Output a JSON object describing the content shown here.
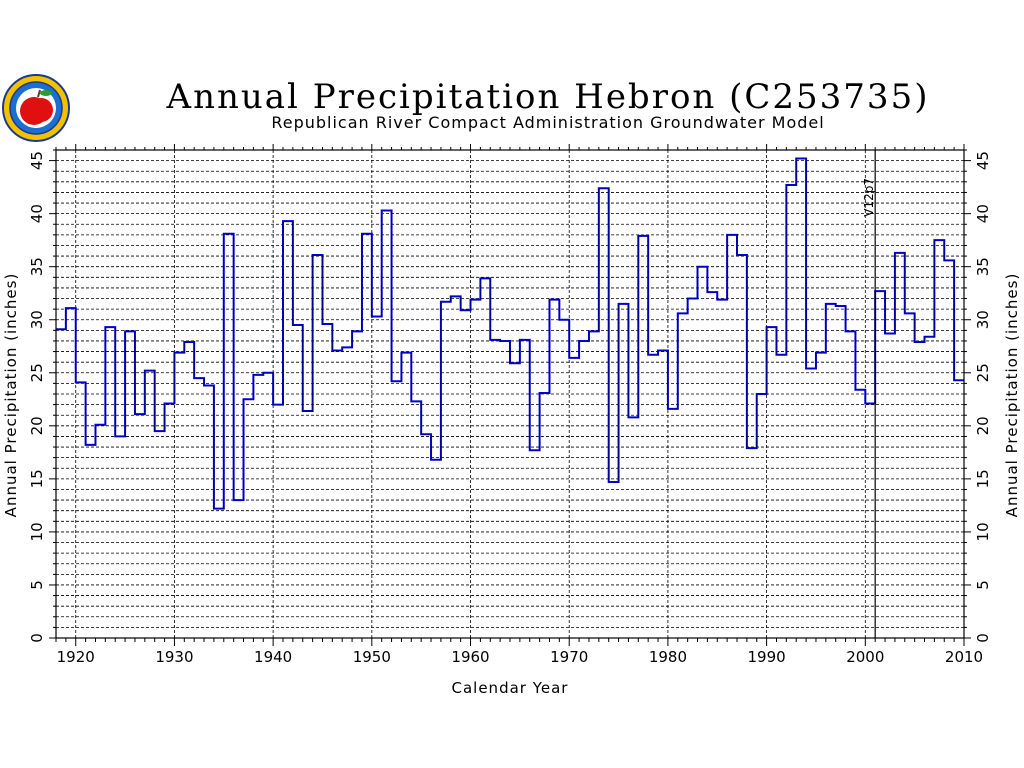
{
  "chart_data": {
    "type": "line",
    "step": true,
    "title": "Annual Precipitation Hebron (C253735)",
    "subtitle": "Republican River Compact Administration Groundwater Model",
    "xlabel": "Calendar Year",
    "ylabel": "Annual Precipitation (inches)",
    "ylabel_right": "Annual Precipitation (inches)",
    "xlim": [
      1918,
      2010
    ],
    "ylim": [
      0,
      46
    ],
    "x_ticks": [
      1920,
      1930,
      1940,
      1950,
      1960,
      1970,
      1980,
      1990,
      2000,
      2010
    ],
    "y_ticks": [
      0,
      5,
      10,
      15,
      20,
      25,
      30,
      35,
      40,
      45
    ],
    "grid": true,
    "series": [
      {
        "name": "Annual Precipitation",
        "color": "#0000cc",
        "x": [
          1918,
          1919,
          1920,
          1921,
          1922,
          1923,
          1924,
          1925,
          1926,
          1927,
          1928,
          1929,
          1930,
          1931,
          1932,
          1933,
          1934,
          1935,
          1936,
          1937,
          1938,
          1939,
          1940,
          1941,
          1942,
          1943,
          1944,
          1945,
          1946,
          1947,
          1948,
          1949,
          1950,
          1951,
          1952,
          1953,
          1954,
          1955,
          1956,
          1957,
          1958,
          1959,
          1960,
          1961,
          1962,
          1963,
          1964,
          1965,
          1966,
          1967,
          1968,
          1969,
          1970,
          1971,
          1972,
          1973,
          1974,
          1975,
          1976,
          1977,
          1978,
          1979,
          1980,
          1981,
          1982,
          1983,
          1984,
          1985,
          1986,
          1987,
          1988,
          1989,
          1990,
          1991,
          1992,
          1993,
          1994,
          1995,
          1996,
          1997,
          1998,
          1999,
          2000,
          2001,
          2002,
          2003,
          2004,
          2005,
          2006,
          2007,
          2008,
          2009
        ],
        "values": [
          29.1,
          31.1,
          24.1,
          18.2,
          20.1,
          29.3,
          19.0,
          28.9,
          21.1,
          25.2,
          19.5,
          22.1,
          26.9,
          27.9,
          24.5,
          23.8,
          12.2,
          38.1,
          13.0,
          22.5,
          24.8,
          25.0,
          22.0,
          39.3,
          29.5,
          21.4,
          36.1,
          29.6,
          27.1,
          27.4,
          28.9,
          38.1,
          30.3,
          40.3,
          24.2,
          26.9,
          22.3,
          19.2,
          16.8,
          31.7,
          32.2,
          30.9,
          31.9,
          33.9,
          28.1,
          28.0,
          25.9,
          28.1,
          17.7,
          23.1,
          31.9,
          30.0,
          26.4,
          28.0,
          28.9,
          42.4,
          14.7,
          31.5,
          20.8,
          37.9,
          26.7,
          27.1,
          21.6,
          30.6,
          32.0,
          35.0,
          32.6,
          31.9,
          38.0,
          36.1,
          17.9,
          23.0,
          29.3,
          26.7,
          42.7,
          45.2,
          25.4,
          26.9,
          31.5,
          31.3,
          28.9,
          23.4,
          22.1,
          32.7,
          28.7,
          36.3,
          30.6,
          27.9,
          28.4,
          37.5,
          35.6,
          24.3
        ]
      }
    ],
    "annotations": [
      {
        "type": "vline",
        "x": 2001,
        "label": "V12p7"
      }
    ]
  },
  "logo": {
    "icon": "apple-icon",
    "colors": {
      "ring": "#1a3a8c",
      "outer": "#f2c200",
      "apple": "#e01010",
      "leaf": "#2a9d2a"
    }
  }
}
